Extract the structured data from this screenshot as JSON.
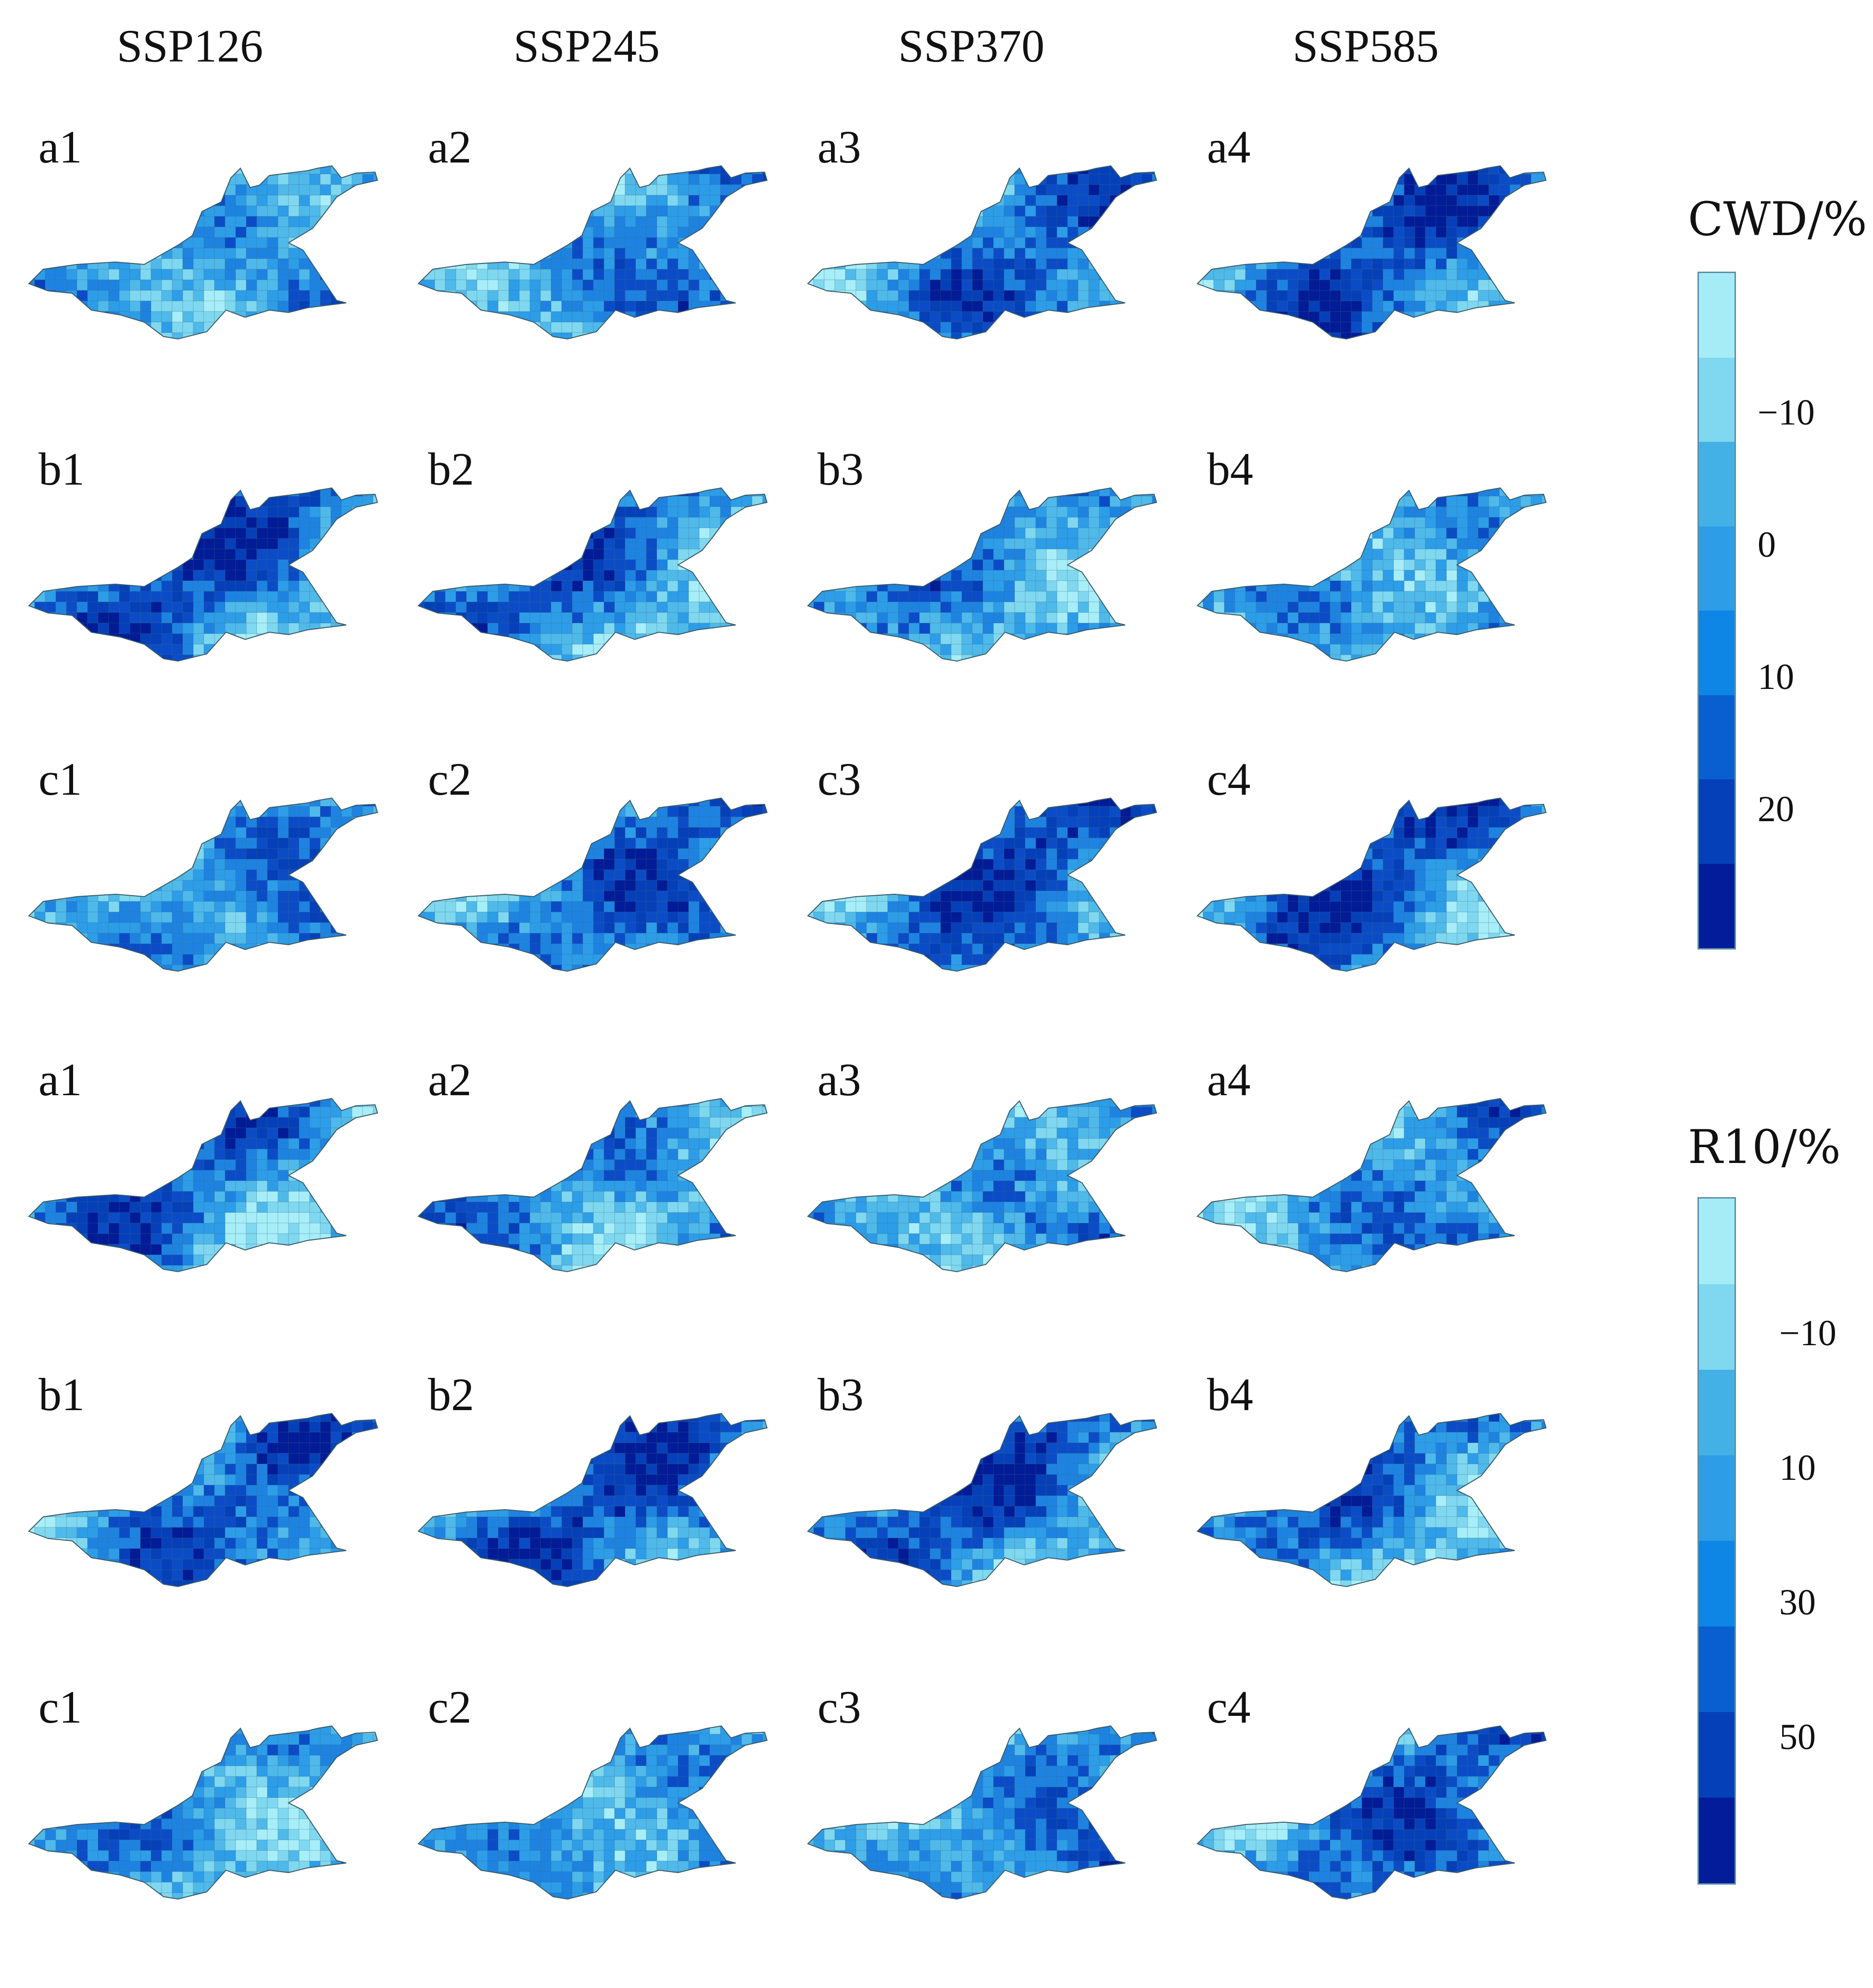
{
  "column_headers": [
    "SSP126",
    "SSP245",
    "SSP370",
    "SSP585"
  ],
  "row_labels": [
    [
      "a1",
      "a2",
      "a3",
      "a4"
    ],
    [
      "b1",
      "b2",
      "b3",
      "b4"
    ],
    [
      "c1",
      "c2",
      "c3",
      "c4"
    ],
    [
      "a1",
      "a2",
      "a3",
      "a4"
    ],
    [
      "b1",
      "b2",
      "b3",
      "b4"
    ],
    [
      "c1",
      "c2",
      "c3",
      "c4"
    ]
  ],
  "legend_cwd": {
    "title": "CWD/%",
    "ticks": [
      "−10",
      "0",
      "10",
      "20"
    ],
    "colors": [
      "#a6ecf7",
      "#7fd8ef",
      "#44b1e6",
      "#2d9de8",
      "#0d86e6",
      "#0a5fd0",
      "#0540b8",
      "#021c9a"
    ]
  },
  "legend_r10": {
    "title": "R10/%",
    "ticks": [
      "−10",
      "10",
      "30",
      "50"
    ],
    "colors": [
      "#a6ecf7",
      "#7fd8ef",
      "#44b1e6",
      "#2d9de8",
      "#0d86e6",
      "#0a5fd0",
      "#0540b8",
      "#021c9a"
    ]
  },
  "palette": {
    "lightest": "#a7eef8",
    "light": "#4fb9ea",
    "mid": "#1e83e0",
    "dark": "#0b4cc6",
    "darkest": "#021b96",
    "border": "#3a5a66"
  }
}
